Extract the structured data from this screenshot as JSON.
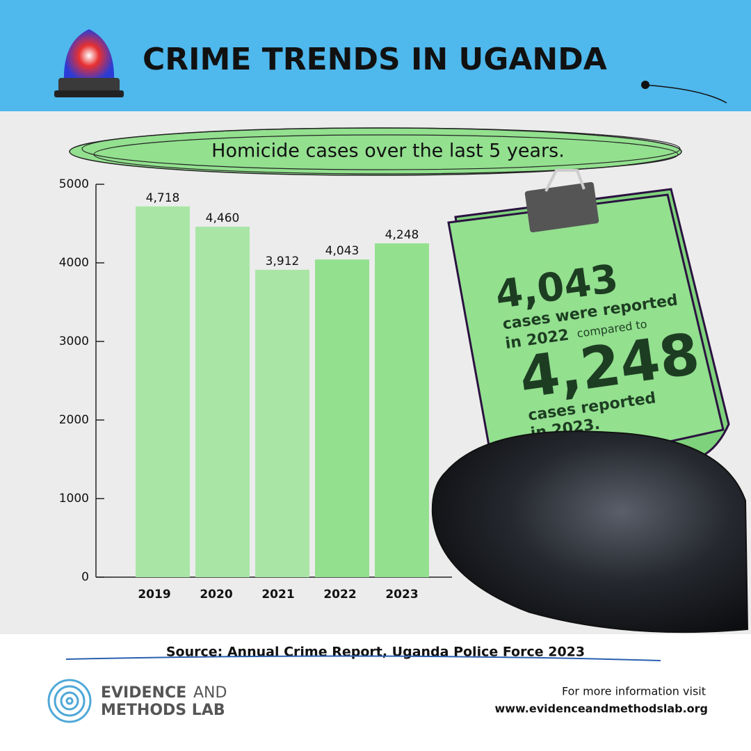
{
  "header": {
    "title": "CRIME TRENDS IN UGANDA"
  },
  "chart_data": {
    "type": "bar",
    "title": "Homicide cases over the last 5 years.",
    "categories": [
      "2019",
      "2020",
      "2021",
      "2022",
      "2023"
    ],
    "values": [
      4718,
      4460,
      3912,
      4043,
      4248
    ],
    "value_labels": [
      "4,718",
      "4,460",
      "3,912",
      "4,043",
      "4,248"
    ],
    "colors": [
      "#a9e6a6",
      "#a9e6a6",
      "#a9e6a6",
      "#93e08f",
      "#93e08f"
    ],
    "ylim": [
      0,
      5000
    ],
    "yticks": [
      0,
      1000,
      2000,
      3000,
      4000,
      5000
    ],
    "grid": false
  },
  "note": {
    "first_value": "4,043",
    "line1": "cases were reported",
    "line2": "in 2022",
    "line2b": "compared to",
    "second_value": "4,248",
    "line3": "cases reported",
    "line4": "in 2023."
  },
  "source": "Source: Annual Crime Report, Uganda Police Force 2023",
  "footer": {
    "brand1": "EVIDENCE",
    "brand1b": "AND",
    "brand2": "METHODS LAB",
    "info": "For more information visit",
    "url": "www.evidenceandmethodslab.org"
  }
}
